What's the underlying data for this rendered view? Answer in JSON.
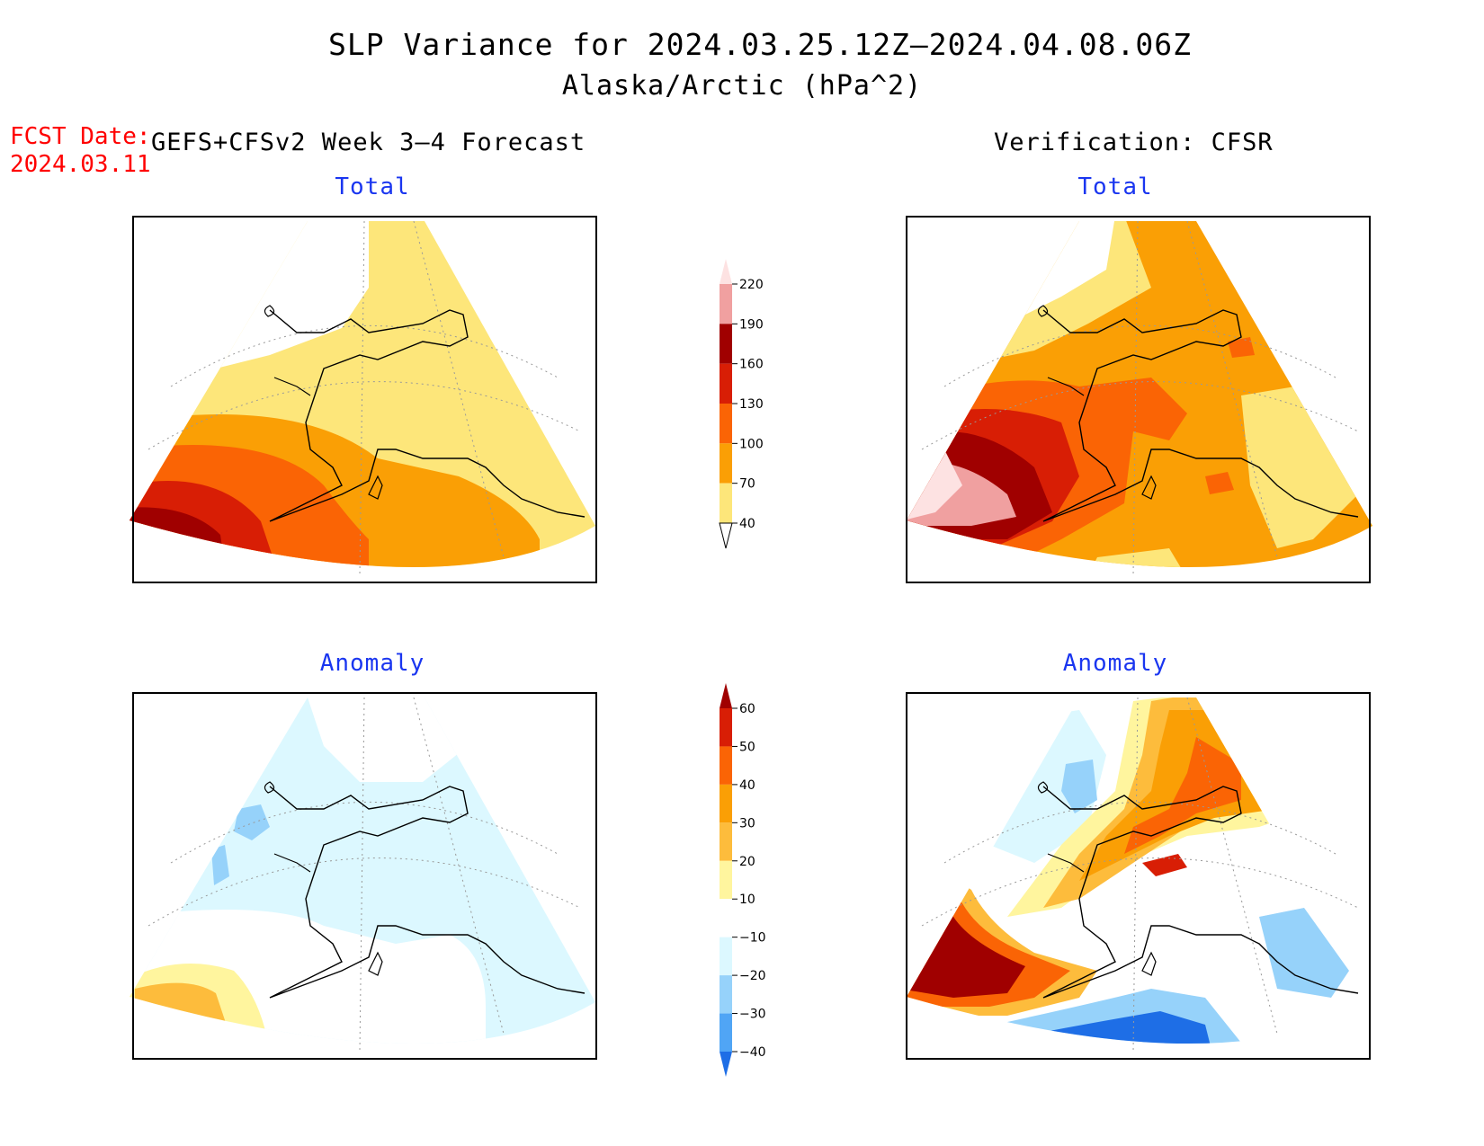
{
  "title": "SLP Variance for 2024.03.25.12Z–2024.04.08.06Z",
  "subtitle": "Alaska/Arctic (hPa^2)",
  "fcst_label": "FCST Date:",
  "fcst_date": "2024.03.11",
  "left_header": "GEFS+CFSv2 Week 3–4 Forecast",
  "right_header": "Verification: CFSR",
  "panels": {
    "forecast_total": "Total",
    "verification_total": "Total",
    "forecast_anomaly": "Anomaly",
    "verification_anomaly": "Anomaly"
  },
  "colorbars": {
    "total": {
      "labels": [
        "220",
        "190",
        "160",
        "130",
        "100",
        "70",
        "40"
      ],
      "colors": [
        "#fde2e2",
        "#f0a0a0",
        "#a00000",
        "#d81e05",
        "#fa6405",
        "#fa9f05",
        "#fde67a"
      ]
    },
    "anomaly": {
      "labels": [
        "60",
        "50",
        "40",
        "30",
        "20",
        "10",
        "−10",
        "−20",
        "−30",
        "−40"
      ],
      "colors": [
        "#a00000",
        "#d81e05",
        "#fa6405",
        "#fa9f05",
        "#fdbc3c",
        "#fff59e",
        "#ffffff",
        "#dcf8ff",
        "#96d2fa",
        "#50a5f5",
        "#1e6ee6"
      ]
    }
  },
  "colors": {
    "title_blue": "#1a36f0",
    "fcst_red": "#ff0000"
  }
}
